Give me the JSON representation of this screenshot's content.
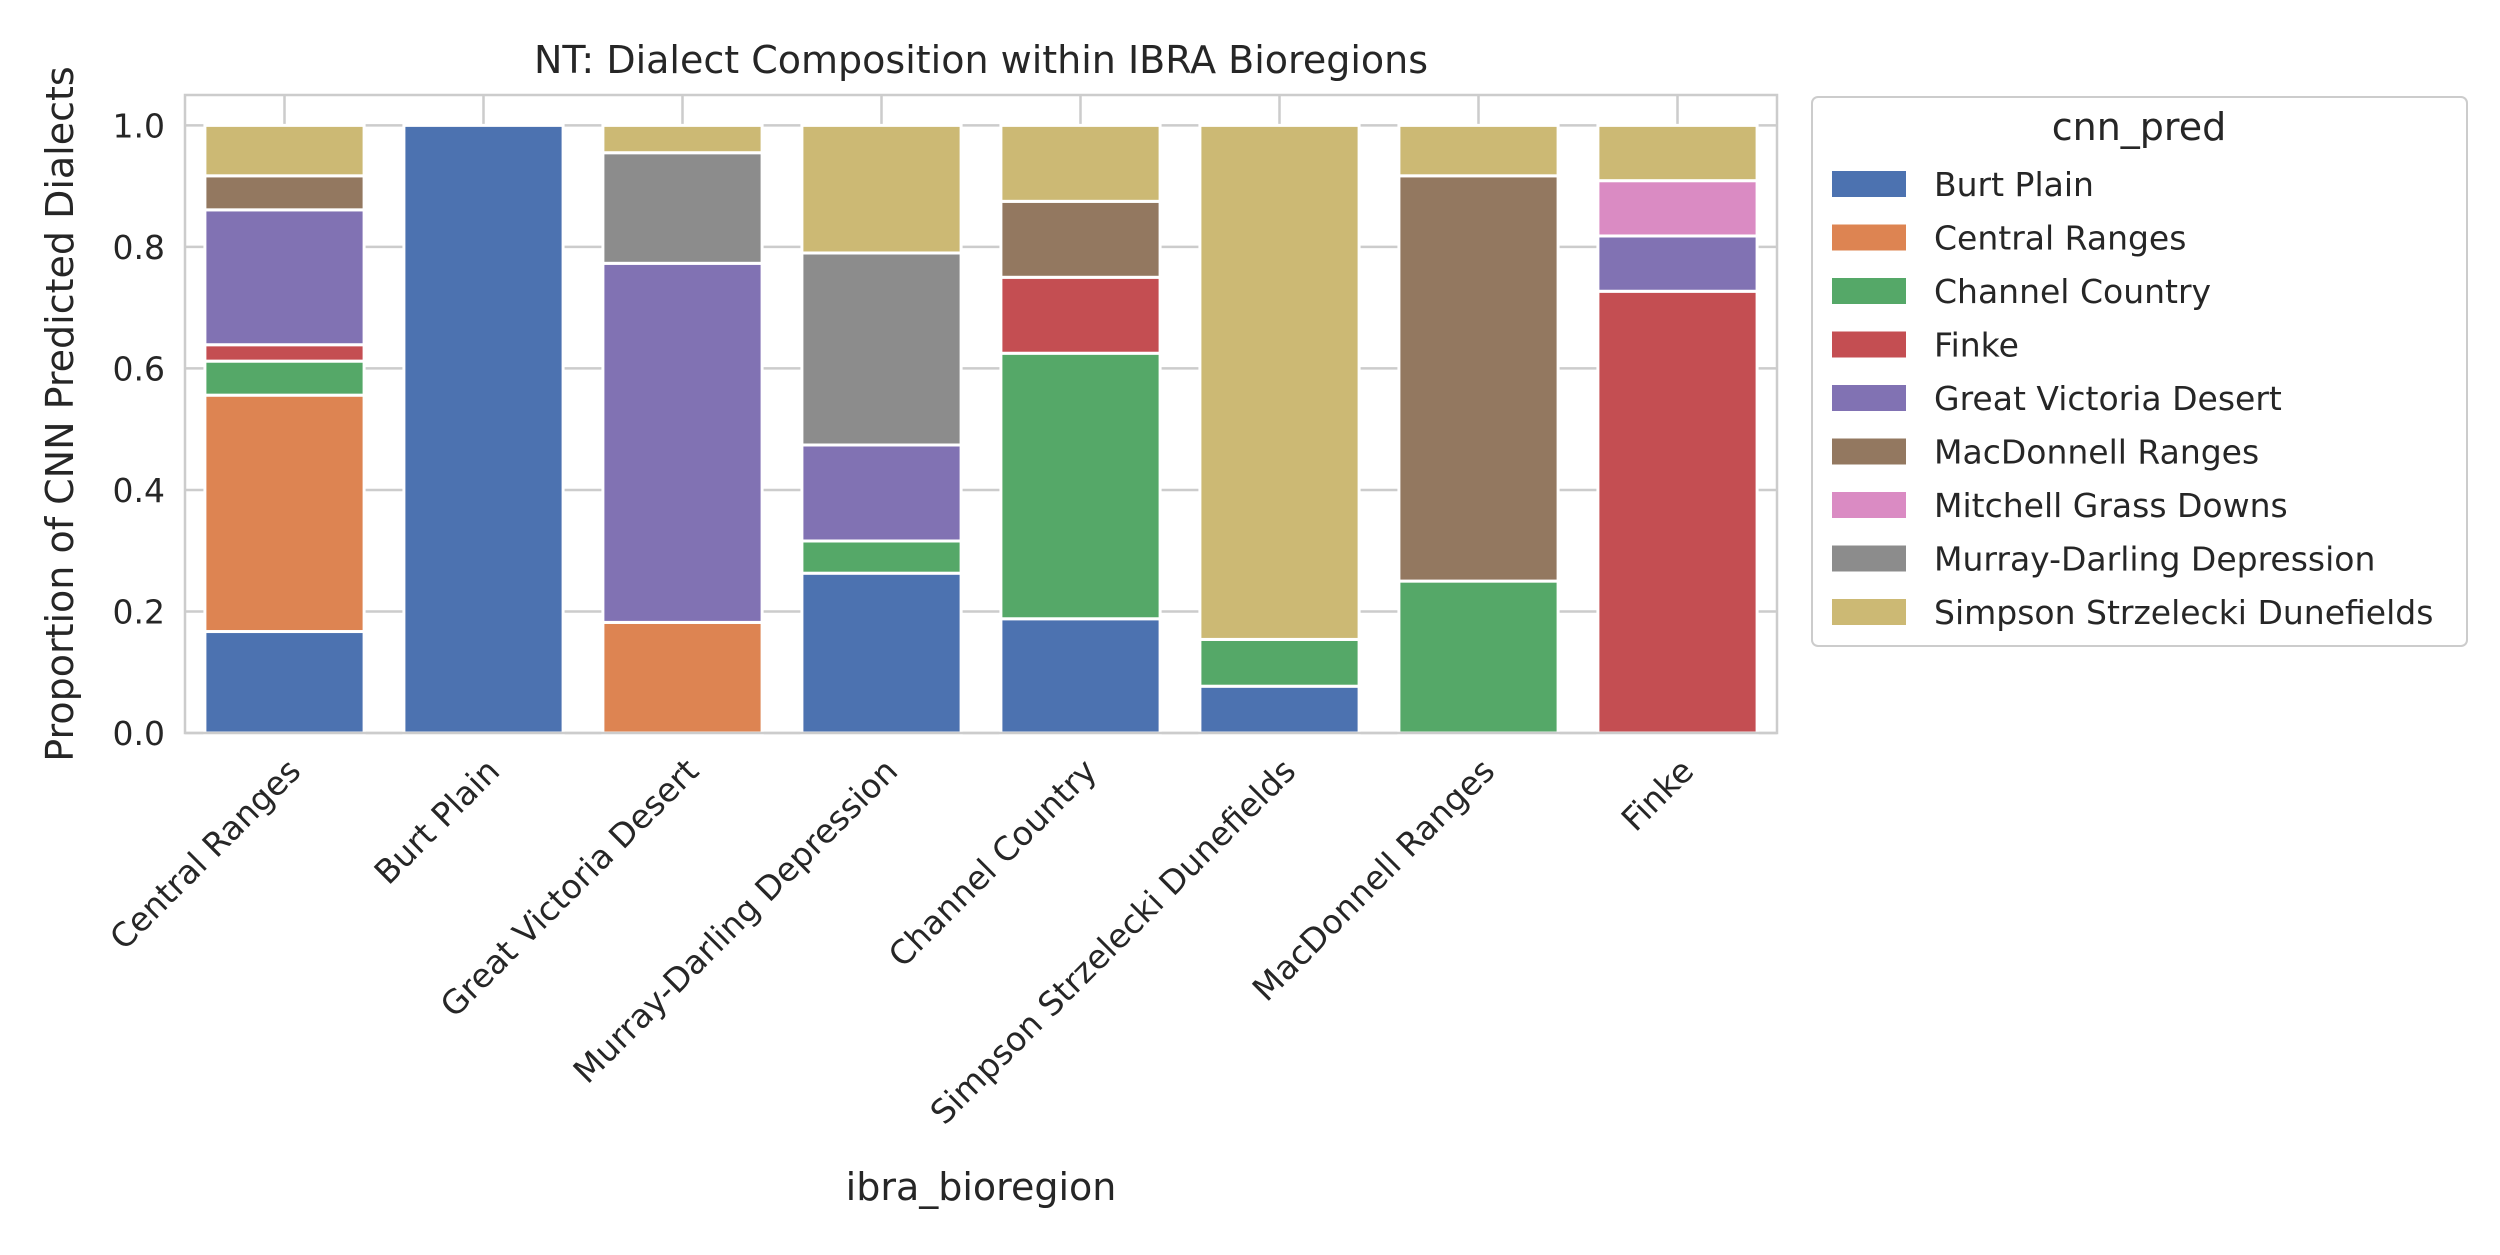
{
  "chart_data": {
    "type": "bar",
    "stacked": true,
    "title": "NT: Dialect Composition within IBRA Bioregions",
    "xlabel": "ibra_bioregion",
    "ylabel": "Proportion of CNN Predicted Dialects",
    "ylim": [
      0,
      1.05
    ],
    "yticks": [
      "0.0",
      "0.2",
      "0.4",
      "0.6",
      "0.8",
      "1.0"
    ],
    "grid": true,
    "legend_title": "cnn_pred",
    "legend_position": "outside-right",
    "categories": [
      "Central Ranges",
      "Burt Plain",
      "Great Victoria Desert",
      "Murray-Darling Depression",
      "Channel Country",
      "Simpson Strzelecki Dunefields",
      "MacDonnell Ranges",
      "Finke"
    ],
    "series": [
      {
        "name": "Burt Plain",
        "color": "#4c72b0",
        "values": [
          0.167,
          1.0,
          0.0,
          0.263,
          0.188,
          0.077,
          0.0,
          0.0
        ]
      },
      {
        "name": "Central Ranges",
        "color": "#dd8452",
        "values": [
          0.389,
          0.0,
          0.182,
          0.0,
          0.0,
          0.0,
          0.0,
          0.0
        ]
      },
      {
        "name": "Channel Country",
        "color": "#55a868",
        "values": [
          0.056,
          0.0,
          0.0,
          0.053,
          0.437,
          0.077,
          0.25,
          0.0
        ]
      },
      {
        "name": "Finke",
        "color": "#c44e52",
        "values": [
          0.027,
          0.0,
          0.0,
          0.0,
          0.125,
          0.0,
          0.0,
          0.727
        ]
      },
      {
        "name": "Great Victoria Desert",
        "color": "#8172b3",
        "values": [
          0.222,
          0.0,
          0.591,
          0.158,
          0.0,
          0.0,
          0.0,
          0.091
        ]
      },
      {
        "name": "MacDonnell Ranges",
        "color": "#937860",
        "values": [
          0.056,
          0.0,
          0.0,
          0.0,
          0.125,
          0.0,
          0.667,
          0.0
        ]
      },
      {
        "name": "Mitchell Grass Downs",
        "color": "#da8bc3",
        "values": [
          0.0,
          0.0,
          0.0,
          0.0,
          0.0,
          0.0,
          0.0,
          0.091
        ]
      },
      {
        "name": "Murray-Darling Depression",
        "color": "#8c8c8c",
        "values": [
          0.0,
          0.0,
          0.182,
          0.316,
          0.0,
          0.0,
          0.0,
          0.0
        ]
      },
      {
        "name": "Simpson Strzelecki Dunefields",
        "color": "#ccb974",
        "values": [
          0.083,
          0.0,
          0.045,
          0.21,
          0.125,
          0.846,
          0.083,
          0.091
        ]
      }
    ]
  }
}
